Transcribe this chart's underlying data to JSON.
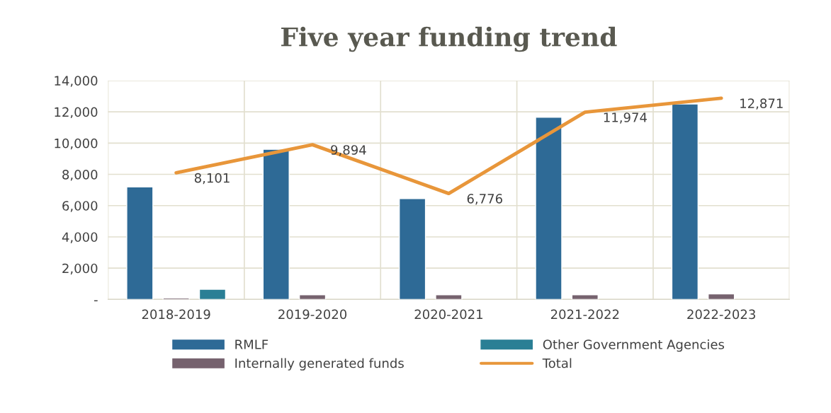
{
  "chart_data": {
    "type": "bar",
    "title": "Five year funding trend",
    "categories": [
      "2018-2019",
      "2019-2020",
      "2020-2021",
      "2021-2022",
      "2022-2023"
    ],
    "series": [
      {
        "name": "RMLF",
        "color": "#2e6a96",
        "values": [
          7200,
          9600,
          6450,
          11650,
          12500
        ]
      },
      {
        "name": "Internally generated funds",
        "color": "#76626e",
        "values": [
          100,
          300,
          300,
          300,
          350
        ]
      },
      {
        "name": "Other Government Agencies",
        "color": "#2a7f95",
        "values": [
          650,
          null,
          null,
          null,
          null
        ]
      },
      {
        "name": "Total",
        "type": "line",
        "color": "#e8963a",
        "values": [
          8101,
          9894,
          6776,
          11974,
          12871
        ],
        "value_labels": [
          "8,101",
          "9,894",
          "6,776",
          "11,974",
          "12,871"
        ]
      }
    ],
    "ylim": [
      0,
      14000
    ],
    "yticks": [
      {
        "value": 0,
        "label": "-"
      },
      {
        "value": 2000,
        "label": "2,000"
      },
      {
        "value": 4000,
        "label": "4,000"
      },
      {
        "value": 6000,
        "label": "6,000"
      },
      {
        "value": 8000,
        "label": "8,000"
      },
      {
        "value": 10000,
        "label": "10,000"
      },
      {
        "value": 12000,
        "label": "12,000"
      },
      {
        "value": 14000,
        "label": "14,000"
      }
    ],
    "grid": true,
    "legend": "bottom"
  }
}
